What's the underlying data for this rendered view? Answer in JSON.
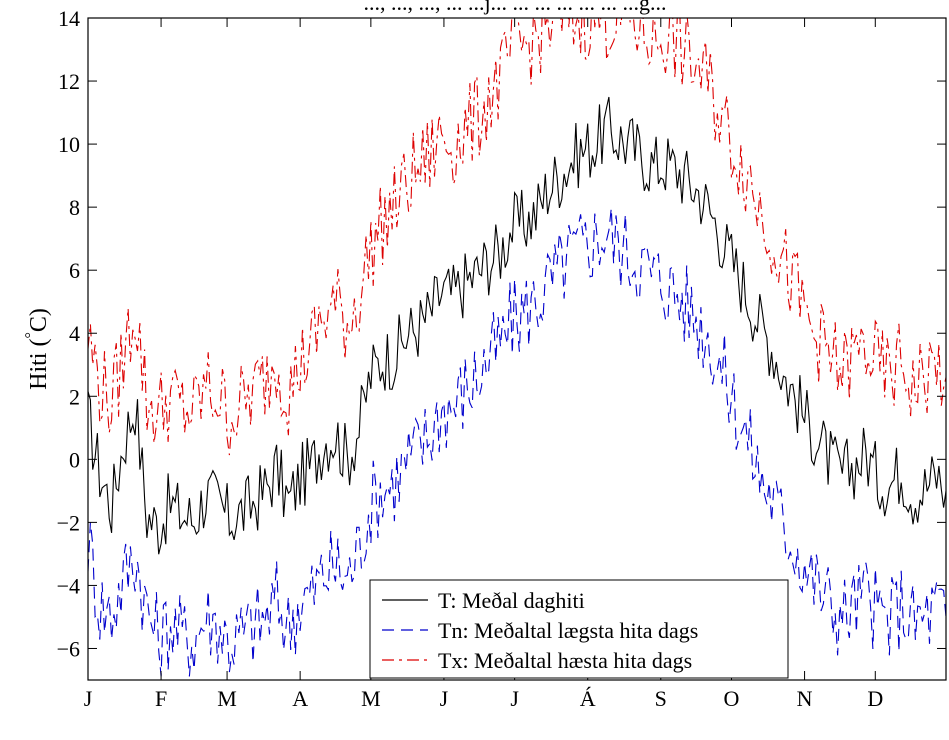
{
  "chart_data": {
    "type": "line",
    "title": "..., ..., ..., ... ...j... ... ... ... ... ... ...g...",
    "ylabel": "Hiti (°C)",
    "ylabel_text": "Hiti (",
    "ylabel_degree": "°",
    "ylabel_unit": "C)",
    "xlabel": "",
    "xlim": [
      1,
      365
    ],
    "ylim": [
      -7,
      14
    ],
    "yticks": [
      -6,
      -4,
      -2,
      0,
      2,
      4,
      6,
      8,
      10,
      12,
      14
    ],
    "ytick_labels": [
      "−6",
      "−4",
      "−2",
      "0",
      "2",
      "4",
      "6",
      "8",
      "10",
      "12",
      "14"
    ],
    "month_labels": [
      "J",
      "F",
      "M",
      "A",
      "M",
      "J",
      "J",
      "Á",
      "S",
      "O",
      "N",
      "D"
    ],
    "month_days": [
      1,
      32,
      60,
      91,
      121,
      152,
      182,
      213,
      244,
      274,
      305,
      335
    ],
    "grid": false,
    "legend_position": "bottom-center",
    "series": [
      {
        "name": "T: Meðal daghiti",
        "color": "#000000",
        "dash": "solid",
        "x": [
          1,
          6,
          11,
          16,
          21,
          26,
          31,
          36,
          41,
          46,
          51,
          56,
          61,
          66,
          71,
          76,
          81,
          86,
          91,
          96,
          101,
          106,
          111,
          116,
          121,
          126,
          131,
          136,
          141,
          146,
          151,
          156,
          161,
          166,
          171,
          176,
          181,
          186,
          191,
          196,
          201,
          206,
          211,
          216,
          221,
          226,
          231,
          236,
          241,
          246,
          251,
          256,
          261,
          266,
          271,
          276,
          281,
          286,
          291,
          296,
          301,
          306,
          311,
          316,
          321,
          326,
          331,
          336,
          341,
          346,
          351,
          356,
          361,
          365
        ],
        "values": [
          1.3,
          -0.4,
          -1.5,
          0.5,
          1.8,
          -1.8,
          -2.1,
          -1.4,
          -1.8,
          -1.9,
          -1.1,
          -1.4,
          -1.9,
          -1.7,
          -1.4,
          -1.0,
          -0.3,
          -1.4,
          -0.6,
          -0.2,
          0.6,
          0.8,
          0.0,
          1.0,
          2.7,
          3.2,
          3.3,
          3.9,
          4.2,
          4.6,
          5.3,
          5.2,
          5.6,
          5.9,
          6.3,
          6.6,
          7.4,
          7.5,
          7.8,
          8.6,
          9.0,
          9.5,
          9.8,
          10.0,
          10.5,
          10.2,
          10.0,
          9.6,
          9.3,
          9.4,
          9.2,
          8.8,
          8.4,
          7.7,
          6.8,
          6.0,
          5.2,
          4.3,
          3.6,
          2.7,
          2.0,
          1.2,
          0.6,
          -0.1,
          -0.5,
          -0.2,
          0.2,
          -0.6,
          -0.8,
          -0.3,
          -1.1,
          -0.9,
          -0.5,
          -1.0
        ]
      },
      {
        "name": "Tn: Meðaltal lægsta hita dags",
        "color": "#0000cc",
        "dash": "dashed",
        "x": [
          1,
          6,
          11,
          16,
          21,
          26,
          31,
          36,
          41,
          46,
          51,
          56,
          61,
          66,
          71,
          76,
          81,
          86,
          91,
          96,
          101,
          106,
          111,
          116,
          121,
          126,
          131,
          136,
          141,
          146,
          151,
          156,
          161,
          166,
          171,
          176,
          181,
          186,
          191,
          196,
          201,
          206,
          211,
          216,
          221,
          226,
          231,
          236,
          241,
          246,
          251,
          256,
          261,
          266,
          271,
          276,
          281,
          286,
          291,
          296,
          301,
          306,
          311,
          316,
          321,
          326,
          331,
          336,
          341,
          346,
          351,
          356,
          361,
          365
        ],
        "values": [
          -2.5,
          -4.6,
          -4.9,
          -3.8,
          -3.0,
          -4.8,
          -5.7,
          -5.2,
          -5.6,
          -5.7,
          -5.0,
          -5.2,
          -5.8,
          -5.6,
          -5.3,
          -5.1,
          -4.5,
          -5.3,
          -4.5,
          -4.3,
          -3.6,
          -3.4,
          -3.8,
          -2.8,
          -1.4,
          -0.9,
          -0.7,
          -0.1,
          0.3,
          0.8,
          1.6,
          1.7,
          2.2,
          2.6,
          3.2,
          3.6,
          4.4,
          4.7,
          5.0,
          5.5,
          6.0,
          6.5,
          6.7,
          7.0,
          7.2,
          6.8,
          6.5,
          6.2,
          5.8,
          5.6,
          5.2,
          4.8,
          4.3,
          3.6,
          2.6,
          1.6,
          0.6,
          -0.5,
          -1.2,
          -2.1,
          -2.7,
          -3.5,
          -4.1,
          -4.6,
          -5.0,
          -4.6,
          -4.3,
          -4.9,
          -5.1,
          -4.6,
          -5.2,
          -5.0,
          -4.7,
          -5.0
        ]
      },
      {
        "name": "Tx: Meðaltal hæsta hita dags",
        "color": "#dd0000",
        "dash": "dashdot",
        "x": [
          1,
          6,
          11,
          16,
          21,
          26,
          31,
          36,
          41,
          46,
          51,
          56,
          61,
          66,
          71,
          76,
          81,
          86,
          91,
          96,
          101,
          106,
          111,
          116,
          121,
          126,
          131,
          136,
          141,
          146,
          151,
          156,
          161,
          166,
          171,
          176,
          181,
          186,
          191,
          196,
          201,
          206,
          211,
          216,
          221,
          226,
          231,
          236,
          241,
          246,
          251,
          256,
          261,
          266,
          271,
          276,
          281,
          286,
          291,
          296,
          301,
          306,
          311,
          316,
          321,
          326,
          331,
          336,
          341,
          346,
          351,
          356,
          361,
          365
        ],
        "values": [
          3.9,
          2.4,
          1.8,
          3.2,
          4.9,
          1.8,
          1.5,
          2.0,
          1.6,
          1.5,
          2.3,
          2.0,
          1.4,
          1.7,
          2.1,
          2.5,
          3.2,
          2.1,
          3.0,
          3.6,
          4.5,
          4.9,
          4.3,
          5.2,
          6.7,
          7.5,
          8.0,
          8.7,
          9.2,
          9.6,
          10.3,
          10.0,
          10.4,
          10.8,
          11.5,
          12.0,
          13.0,
          13.1,
          13.4,
          13.8,
          14.0,
          14.0,
          14.0,
          14.0,
          14.0,
          14.0,
          14.0,
          13.6,
          13.3,
          13.5,
          13.2,
          12.7,
          12.3,
          11.6,
          10.6,
          9.8,
          9.0,
          8.0,
          7.2,
          6.2,
          5.4,
          4.4,
          3.8,
          3.2,
          2.8,
          3.2,
          3.6,
          2.9,
          2.6,
          3.1,
          2.3,
          2.6,
          3.0,
          2.6
        ]
      }
    ]
  }
}
